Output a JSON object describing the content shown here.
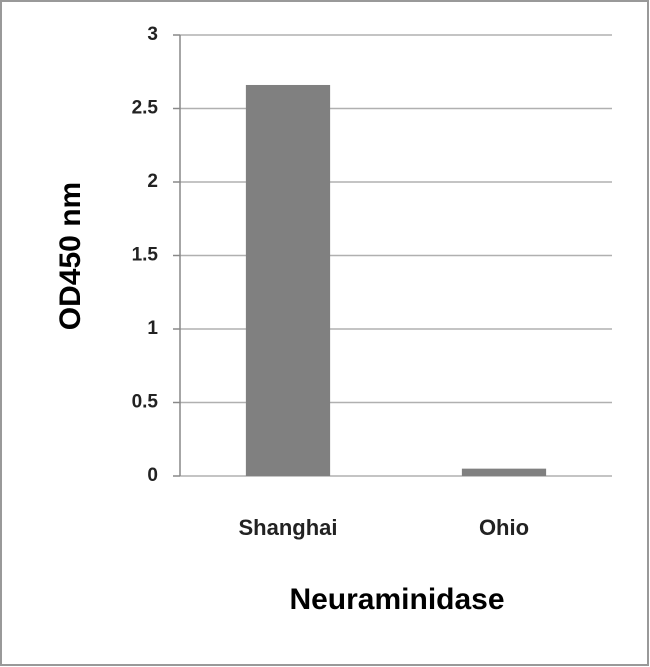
{
  "chart_data": {
    "type": "bar",
    "categories": [
      "Shanghai",
      "Ohio"
    ],
    "values": [
      2.66,
      0.05
    ],
    "color": "#808080",
    "ylim": [
      0,
      3
    ],
    "yticks": [
      0,
      0.5,
      1,
      1.5,
      2,
      2.5,
      3
    ],
    "grid": true,
    "y_label": "OD450 nm",
    "x_label": "Neuraminidase"
  }
}
